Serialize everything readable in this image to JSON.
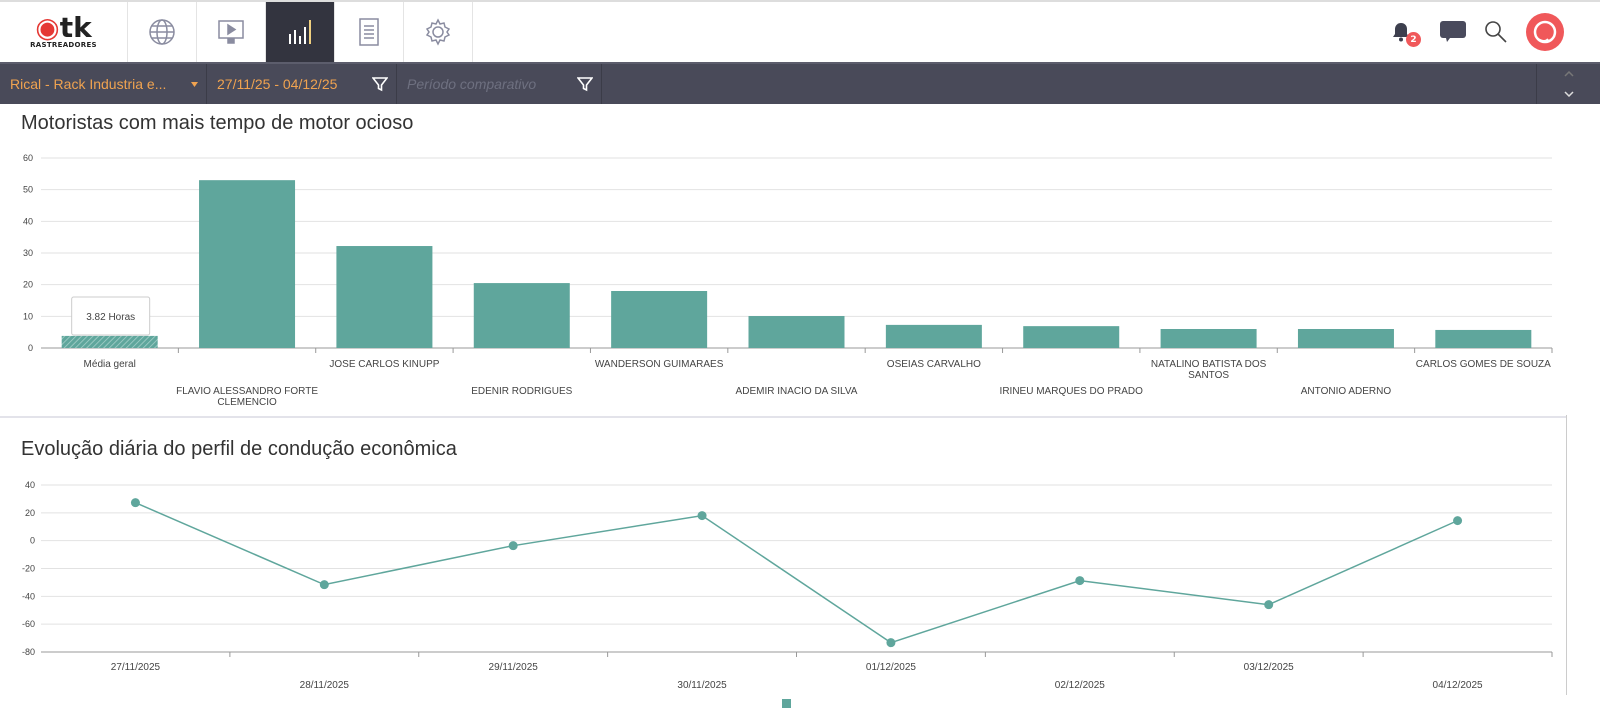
{
  "header": {
    "logo_text": "tk",
    "logo_sub": "RASTREADORES",
    "nav": [
      "globe-icon",
      "monitor-play-icon",
      "bar-chart-icon",
      "document-icon",
      "gear-icon"
    ],
    "notifications_count": "2"
  },
  "filters": {
    "company": "Rical - Rack Industria e...",
    "date_range": "27/11/25 - 04/12/25",
    "compare_placeholder": "Período comparativo"
  },
  "accent": "#5fa69c",
  "chart_data": [
    {
      "type": "bar",
      "title": "Motoristas com mais tempo de motor ocioso",
      "ylim": [
        0,
        60
      ],
      "yticks": [
        0,
        10,
        20,
        30,
        40,
        50,
        60
      ],
      "categories": [
        "Média geral",
        "FLAVIO ALESSANDRO FORTE CLEMENCIO",
        "JOSE CARLOS KINUPP",
        "EDENIR RODRIGUES",
        "WANDERSON GUIMARAES",
        "ADEMIR INACIO DA SILVA",
        "OSEIAS CARVALHO",
        "IRINEU MARQUES DO PRADO",
        "NATALINO BATISTA DOS SANTOS",
        "ANTONIO ADERNO",
        "CARLOS GOMES DE SOUZA"
      ],
      "values": [
        3.82,
        53.0,
        32.2,
        20.5,
        18.0,
        10.1,
        7.3,
        6.9,
        6.0,
        6.0,
        5.7
      ],
      "tooltip": "3.82 Horas"
    },
    {
      "type": "line",
      "title": "Evolução diária do perfil de condução econômica",
      "ylim": [
        -80,
        40
      ],
      "yticks": [
        40,
        20,
        0,
        -20,
        -40,
        -60,
        -80
      ],
      "x": [
        "27/11/2025",
        "28/11/2025",
        "29/11/2025",
        "30/11/2025",
        "01/12/2025",
        "02/12/2025",
        "03/12/2025",
        "04/12/2025"
      ],
      "values": [
        27.3,
        -31.6,
        -3.6,
        18.0,
        -73.3,
        -28.7,
        -46.0,
        14.4
      ]
    }
  ]
}
